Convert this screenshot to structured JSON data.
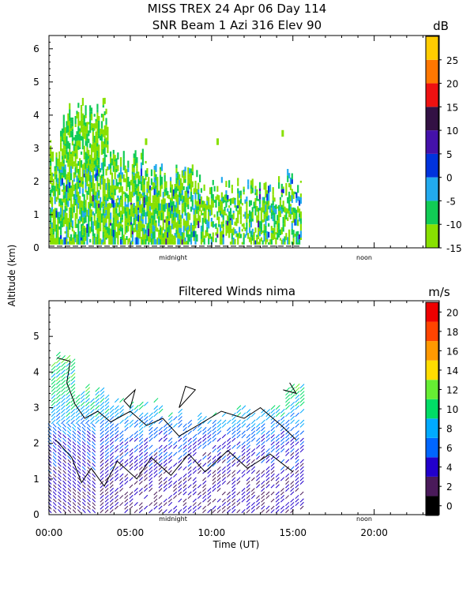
{
  "figure": {
    "title_line1": "MISS TREX    24 Apr 06 Day 114",
    "ylabel": "Altitude (km)",
    "xlabel": "Time (UT)",
    "marker_midnight": "midnight",
    "marker_noon": "noon"
  },
  "chart_data": [
    {
      "type": "heatmap",
      "title": "SNR Beam 1 Azi 316 Elev 90",
      "ylabel": "Altitude (km)",
      "ylim": [
        0,
        6.4
      ],
      "yticks": [
        "0",
        "1",
        "2",
        "3",
        "4",
        "5",
        "6"
      ],
      "xlim_hours": [
        0,
        24
      ],
      "data_extent_hours": [
        0,
        15.5
      ],
      "altitude_extent_km": [
        0.1,
        4.5
      ],
      "colorbar": {
        "unit": "dB",
        "ticks": [
          "-15",
          "-10",
          "-5",
          "0",
          "5",
          "10",
          "15",
          "20",
          "25"
        ],
        "colors": [
          "#88e000",
          "#11cc55",
          "#22aaee",
          "#0033dd",
          "#4411aa",
          "#331144",
          "#ee1111",
          "#ff7700",
          "#ffcc00"
        ]
      },
      "dominant_colors": [
        "#88e000",
        "#11cc55",
        "#22aaee"
      ]
    },
    {
      "type": "heatmap",
      "title": "Filtered Winds nima",
      "ylabel": "Altitude (km)",
      "xlabel": "Time (UT)",
      "ylim": [
        0,
        6
      ],
      "yticks": [
        "0",
        "1",
        "2",
        "3",
        "4",
        "5"
      ],
      "xlim_hours": [
        0,
        24
      ],
      "xticks": [
        "00:00",
        "05:00",
        "10:00",
        "15:00",
        "20:00"
      ],
      "data_extent_hours": [
        0,
        15.5
      ],
      "altitude_extent_km": [
        0,
        4.6
      ],
      "colorbar": {
        "unit": "m/s",
        "ticks": [
          "0",
          "2",
          "4",
          "6",
          "8",
          "10",
          "12",
          "14",
          "16",
          "18",
          "20"
        ],
        "colors": [
          "#000000",
          "#4a1a5a",
          "#2200cc",
          "#0066ff",
          "#00aaff",
          "#00dd66",
          "#66ee33",
          "#ffdd00",
          "#ff9900",
          "#ff4400",
          "#ee0000"
        ]
      },
      "wind_speed_by_altitude_ms": [
        {
          "altitude_km": 0.5,
          "speed": 3
        },
        {
          "altitude_km": 1.5,
          "speed": 4
        },
        {
          "altitude_km": 2.0,
          "speed": 5
        },
        {
          "altitude_km": 2.5,
          "speed": 7
        },
        {
          "altitude_km": 3.0,
          "speed": 9
        },
        {
          "altitude_km": 3.5,
          "speed": 10
        },
        {
          "altitude_km": 4.0,
          "speed": 10
        }
      ]
    }
  ]
}
